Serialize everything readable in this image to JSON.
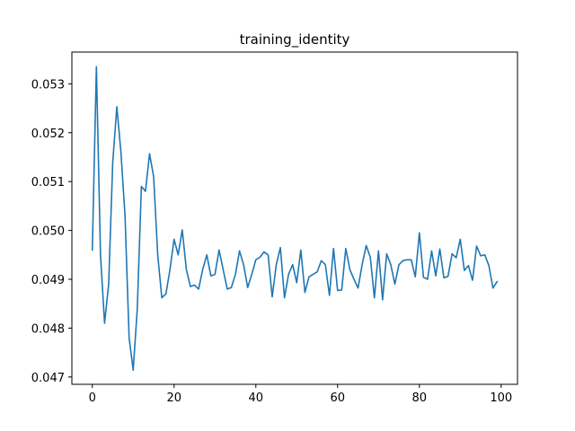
{
  "chart_data": {
    "type": "line",
    "title": "training_identity",
    "xlabel": "",
    "ylabel": "",
    "xlim": [
      -5,
      104
    ],
    "ylim": [
      0.04685,
      0.05365
    ],
    "xticks": [
      0,
      20,
      40,
      60,
      80,
      100
    ],
    "yticks": [
      0.047,
      0.048,
      0.049,
      0.05,
      0.051,
      0.052,
      0.053
    ],
    "grid": false,
    "legend": "none",
    "line_color": "#1f77b4",
    "series": [
      {
        "x": [
          0,
          1,
          2,
          3,
          4,
          5,
          6,
          7,
          8,
          9,
          10,
          11,
          12,
          13,
          14,
          15,
          16,
          17,
          18,
          19,
          20,
          21,
          22,
          23,
          24,
          25,
          26,
          27,
          28,
          29,
          30,
          31,
          32,
          33,
          34,
          35,
          36,
          37,
          38,
          39,
          40,
          41,
          42,
          43,
          44,
          45,
          46,
          47,
          48,
          49,
          50,
          51,
          52,
          53,
          54,
          55,
          56,
          57,
          58,
          59,
          60,
          61,
          62,
          63,
          64,
          65,
          66,
          67,
          68,
          69,
          70,
          71,
          72,
          73,
          74,
          75,
          76,
          77,
          78,
          79,
          80,
          81,
          82,
          83,
          84,
          85,
          86,
          87,
          88,
          89,
          90,
          91,
          92,
          93,
          94,
          95,
          96,
          97,
          98,
          99
        ],
        "values": [
          0.0496,
          0.05335,
          0.0495,
          0.0481,
          0.0489,
          0.0514,
          0.05253,
          0.0516,
          0.0503,
          0.0478,
          0.04714,
          0.0484,
          0.0509,
          0.0508,
          0.05157,
          0.0511,
          0.0495,
          0.04862,
          0.0487,
          0.0492,
          0.04982,
          0.0495,
          0.05001,
          0.0492,
          0.04885,
          0.04888,
          0.0488,
          0.0492,
          0.0495,
          0.04907,
          0.0491,
          0.0496,
          0.0492,
          0.0488,
          0.04883,
          0.0491,
          0.04958,
          0.0493,
          0.04883,
          0.0491,
          0.0494,
          0.04945,
          0.04956,
          0.0495,
          0.04864,
          0.0493,
          0.04965,
          0.04862,
          0.0491,
          0.0493,
          0.04893,
          0.0496,
          0.04873,
          0.04905,
          0.0491,
          0.04915,
          0.04938,
          0.0493,
          0.04867,
          0.04963,
          0.04877,
          0.04878,
          0.04963,
          0.0492,
          0.049,
          0.04882,
          0.0493,
          0.04969,
          0.04945,
          0.04862,
          0.04958,
          0.04858,
          0.04952,
          0.0493,
          0.0489,
          0.0493,
          0.04938,
          0.0494,
          0.0494,
          0.04905,
          0.04995,
          0.04904,
          0.049,
          0.04958,
          0.04907,
          0.04962,
          0.04903,
          0.04906,
          0.04952,
          0.04944,
          0.04982,
          0.04918,
          0.04928,
          0.04898,
          0.04968,
          0.04948,
          0.0495,
          0.04928,
          0.04882,
          0.04895
        ]
      }
    ]
  }
}
